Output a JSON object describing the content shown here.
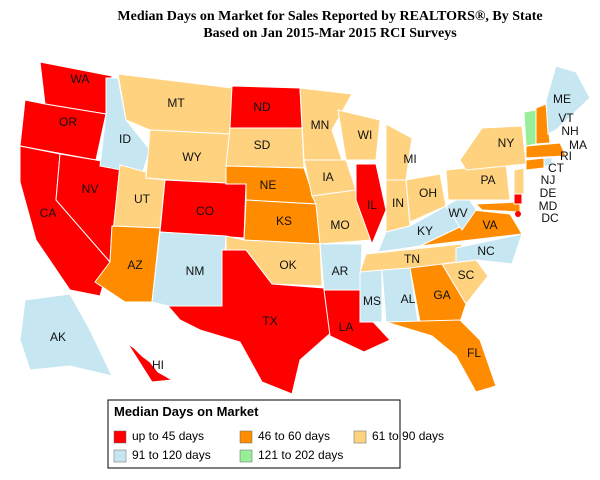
{
  "title": [
    "Median Days on Market for Sales Reported by REALTORS®, By State",
    "Based on Jan 2015-Mar 2015 RCI Surveys"
  ],
  "legend": {
    "title": "Median Days on Market",
    "items": [
      {
        "label": "up to 45 days",
        "color": "#ff0000"
      },
      {
        "label": "46 to 60 days",
        "color": "#ff8c00"
      },
      {
        "label": "61 to 90 days",
        "color": "#ffd27f"
      },
      {
        "label": "91 to 120 days",
        "color": "#c6e6f2"
      },
      {
        "label": "121 to 202 days",
        "color": "#99ee99"
      }
    ]
  },
  "states": [
    {
      "label": "WA",
      "color": "#ff0000"
    },
    {
      "label": "OR",
      "color": "#ff0000"
    },
    {
      "label": "CA",
      "color": "#ff0000"
    },
    {
      "label": "NV",
      "color": "#ff0000"
    },
    {
      "label": "ID",
      "color": "#c6e6f2"
    },
    {
      "label": "MT",
      "color": "#ffd27f"
    },
    {
      "label": "WY",
      "color": "#ffd27f"
    },
    {
      "label": "UT",
      "color": "#ffd27f"
    },
    {
      "label": "AZ",
      "color": "#ff8c00"
    },
    {
      "label": "CO",
      "color": "#ff0000"
    },
    {
      "label": "NM",
      "color": "#c6e6f2"
    },
    {
      "label": "ND",
      "color": "#ff0000"
    },
    {
      "label": "SD",
      "color": "#ffd27f"
    },
    {
      "label": "NE",
      "color": "#ff8c00"
    },
    {
      "label": "KS",
      "color": "#ff8c00"
    },
    {
      "label": "OK",
      "color": "#ffd27f"
    },
    {
      "label": "TX",
      "color": "#ff0000"
    },
    {
      "label": "MN",
      "color": "#ffd27f"
    },
    {
      "label": "IA",
      "color": "#ffd27f"
    },
    {
      "label": "MO",
      "color": "#ffd27f"
    },
    {
      "label": "AR",
      "color": "#c6e6f2"
    },
    {
      "label": "LA",
      "color": "#ff0000"
    },
    {
      "label": "WI",
      "color": "#ffd27f"
    },
    {
      "label": "IL",
      "color": "#ff0000"
    },
    {
      "label": "MI",
      "color": "#ffd27f"
    },
    {
      "label": "IN",
      "color": "#ffd27f"
    },
    {
      "label": "OH",
      "color": "#ffd27f"
    },
    {
      "label": "KY",
      "color": "#c6e6f2"
    },
    {
      "label": "TN",
      "color": "#ffd27f"
    },
    {
      "label": "MS",
      "color": "#c6e6f2"
    },
    {
      "label": "AL",
      "color": "#c6e6f2"
    },
    {
      "label": "GA",
      "color": "#ff8c00"
    },
    {
      "label": "FL",
      "color": "#ff8c00"
    },
    {
      "label": "SC",
      "color": "#ffd27f"
    },
    {
      "label": "NC",
      "color": "#c6e6f2"
    },
    {
      "label": "VA",
      "color": "#ff8c00"
    },
    {
      "label": "WV",
      "color": "#c6e6f2"
    },
    {
      "label": "PA",
      "color": "#ffd27f"
    },
    {
      "label": "NY",
      "color": "#ffd27f"
    },
    {
      "label": "MD",
      "color": "#ff8c00"
    },
    {
      "label": "DE",
      "color": "#ff0000"
    },
    {
      "label": "NJ",
      "color": "#ffd27f"
    },
    {
      "label": "CT",
      "color": "#ff8c00"
    },
    {
      "label": "RI",
      "color": "#c6e6f2"
    },
    {
      "label": "MA",
      "color": "#ff8c00"
    },
    {
      "label": "VT",
      "color": "#99ee99"
    },
    {
      "label": "NH",
      "color": "#ff8c00"
    },
    {
      "label": "ME",
      "color": "#c6e6f2"
    },
    {
      "label": "DC",
      "color": "#ff0000"
    },
    {
      "label": "AK",
      "color": "#c6e6f2"
    },
    {
      "label": "HI",
      "color": "#ff0000"
    }
  ]
}
